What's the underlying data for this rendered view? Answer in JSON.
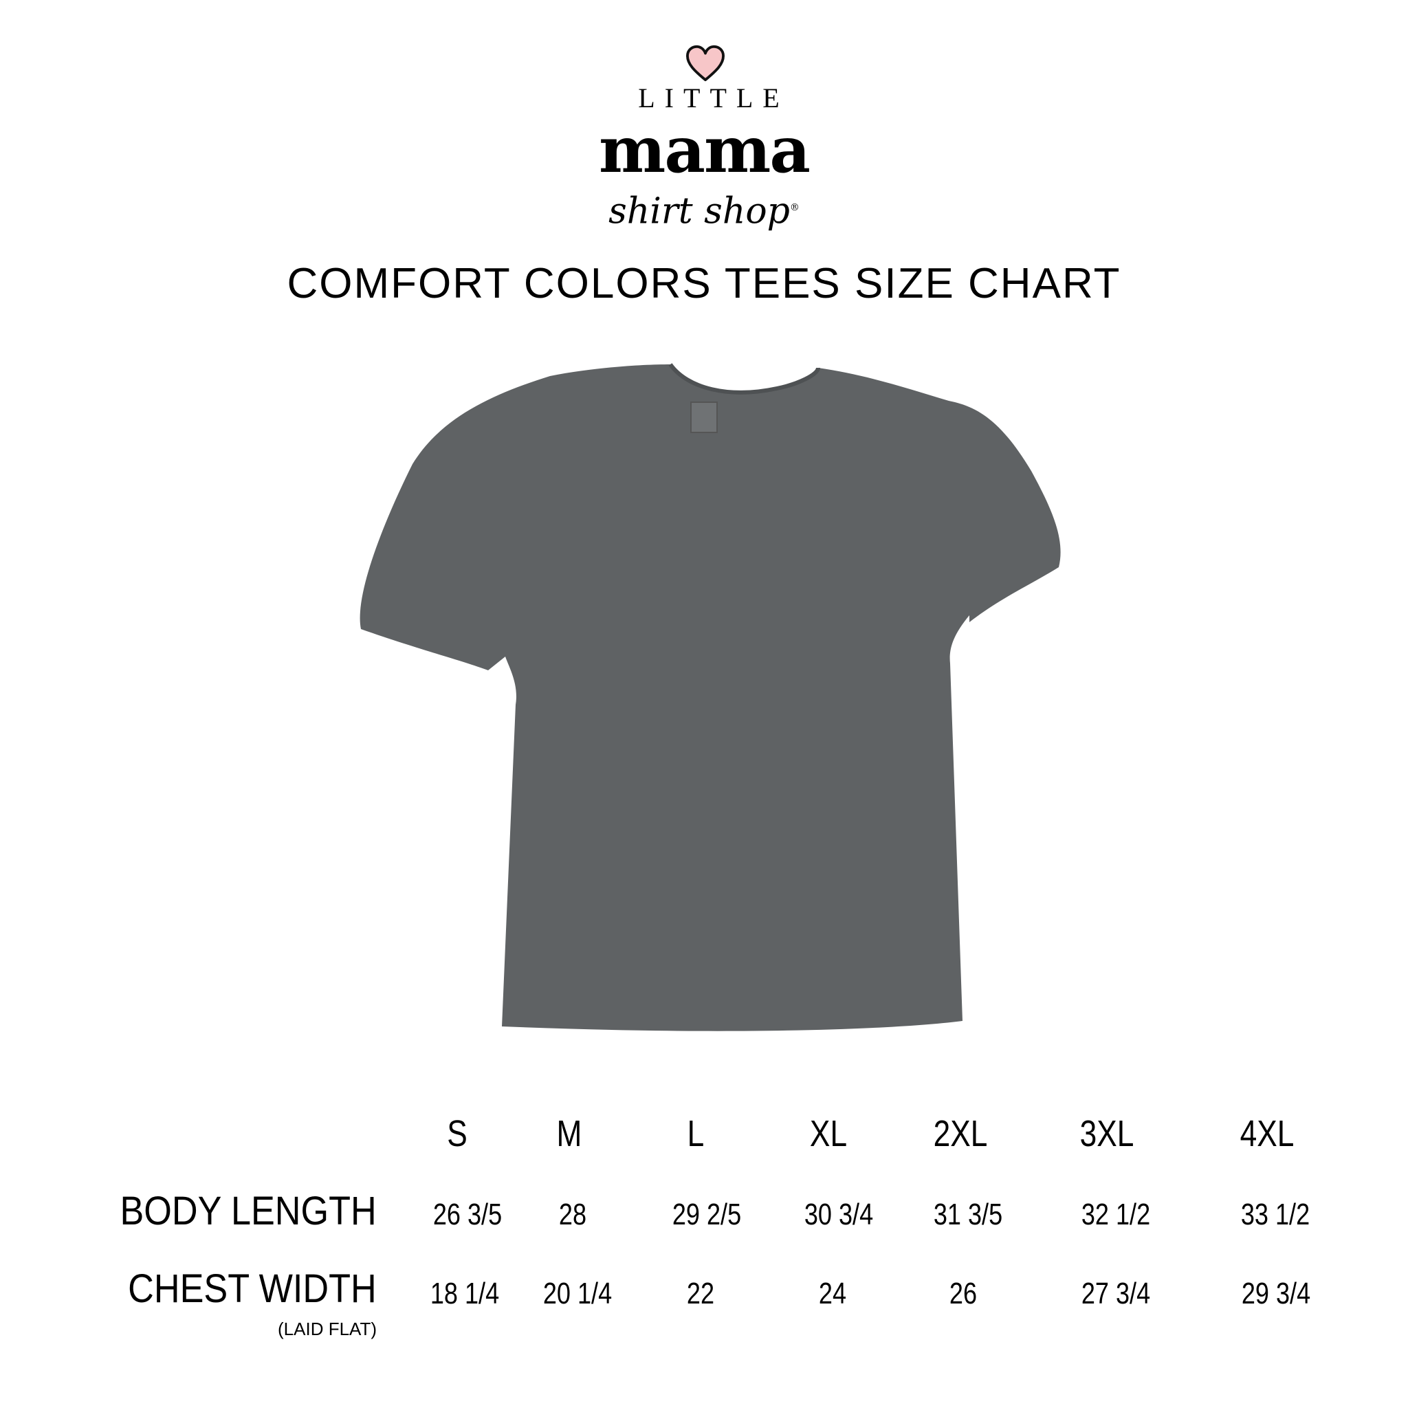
{
  "logo": {
    "line1": "LITTLE",
    "line2": "mama",
    "line3": "shirt shop",
    "mark": "®",
    "heart_color": "#f7c6c8",
    "icon": "heart-icon"
  },
  "title": "COMFORT COLORS TEES SIZE CHART",
  "shirt_color": "#5f6264",
  "chart_data": {
    "type": "table",
    "columns": [
      "S",
      "M",
      "L",
      "XL",
      "2XL",
      "3XL",
      "4XL"
    ],
    "rows": [
      {
        "label": "BODY LENGTH",
        "note": "",
        "values": [
          "26 3/5",
          "28",
          "29 2/5",
          "30 3/4",
          "31 3/5",
          "32 1/2",
          "33 1/2"
        ]
      },
      {
        "label": "CHEST WIDTH",
        "note": "(LAID FLAT)",
        "values": [
          "18 1/4",
          "20 1/4",
          "22",
          "24",
          "26",
          "27 3/4",
          "29 3/4"
        ]
      }
    ]
  }
}
